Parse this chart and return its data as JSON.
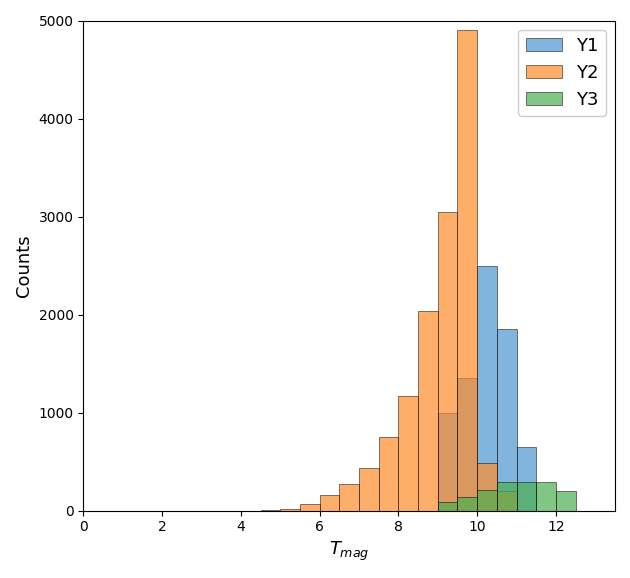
{
  "title": "",
  "xlabel": "$T_{mag}$",
  "ylabel": "Counts",
  "xlim": [
    0,
    13.5
  ],
  "ylim": [
    0,
    5000
  ],
  "bin_edges": [
    0.0,
    0.5,
    1.0,
    1.5,
    2.0,
    2.5,
    3.0,
    3.5,
    4.0,
    4.5,
    5.0,
    5.5,
    6.0,
    6.5,
    7.0,
    7.5,
    8.0,
    8.5,
    9.0,
    9.5,
    10.0,
    10.5,
    11.0,
    11.5,
    12.0,
    12.5,
    13.0
  ],
  "y1_counts": [
    0,
    0,
    0,
    0,
    0,
    0,
    0,
    0,
    0,
    0,
    0,
    0,
    0,
    0,
    0,
    0,
    0,
    0,
    1000,
    1350,
    2500,
    1850,
    650,
    0,
    0,
    0
  ],
  "y2_counts": [
    0,
    0,
    0,
    0,
    0,
    0,
    0,
    0,
    0,
    5,
    20,
    70,
    155,
    275,
    430,
    750,
    1170,
    2035,
    3050,
    4900,
    490,
    200,
    0,
    0,
    0,
    0
  ],
  "y3_counts": [
    0,
    0,
    0,
    0,
    0,
    0,
    0,
    0,
    0,
    0,
    0,
    0,
    0,
    0,
    0,
    0,
    0,
    0,
    90,
    135,
    210,
    290,
    290,
    290,
    200,
    0
  ],
  "color_y1": "#4c96d0",
  "color_y2": "#ff8c2a",
  "color_y3": "#4caf50",
  "alpha": 0.7,
  "legend_labels": [
    "Y1",
    "Y2",
    "Y3"
  ],
  "figsize": [
    6.3,
    5.78
  ],
  "dpi": 100
}
